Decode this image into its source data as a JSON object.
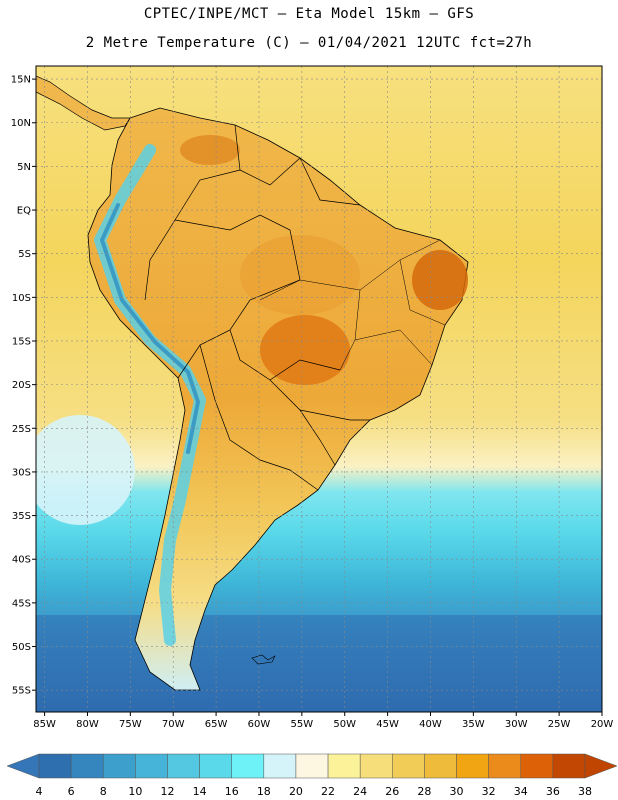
{
  "header": {
    "line1": "CPTEC/INPE/MCT –  Eta Model 15km – GFS",
    "line2": "2 Metre Temperature (C) – 01/04/2021 12UTC fct=27h"
  },
  "map": {
    "lat_ticks": [
      "15N",
      "10N",
      "5N",
      "EQ",
      "5S",
      "10S",
      "15S",
      "20S",
      "25S",
      "30S",
      "35S",
      "40S",
      "45S",
      "50S",
      "55S"
    ],
    "lon_ticks": [
      "85W",
      "80W",
      "75W",
      "70W",
      "65W",
      "60W",
      "55W",
      "50W",
      "45W",
      "40W",
      "35W",
      "30W",
      "25W",
      "20W"
    ],
    "lat_range": [
      -57.5,
      16.5
    ],
    "lon_range": [
      -86,
      -20
    ]
  },
  "colorbar": {
    "labels": [
      "4",
      "6",
      "8",
      "10",
      "12",
      "14",
      "16",
      "18",
      "20",
      "22",
      "24",
      "26",
      "28",
      "30",
      "32",
      "34",
      "36",
      "38"
    ],
    "colors": [
      "#2e6fb0",
      "#3585bf",
      "#3d9fcc",
      "#46b4d8",
      "#54c8e0",
      "#5ad9ea",
      "#6ef2f7",
      "#d4f4fa",
      "#fdf7e1",
      "#fbf29a",
      "#f6de7b",
      "#f1cd58",
      "#efbb3b",
      "#f2a513",
      "#ea8b1c",
      "#dd6207",
      "#c24702"
    ],
    "low_color": "#3576b8",
    "high_color": "#c04500"
  }
}
